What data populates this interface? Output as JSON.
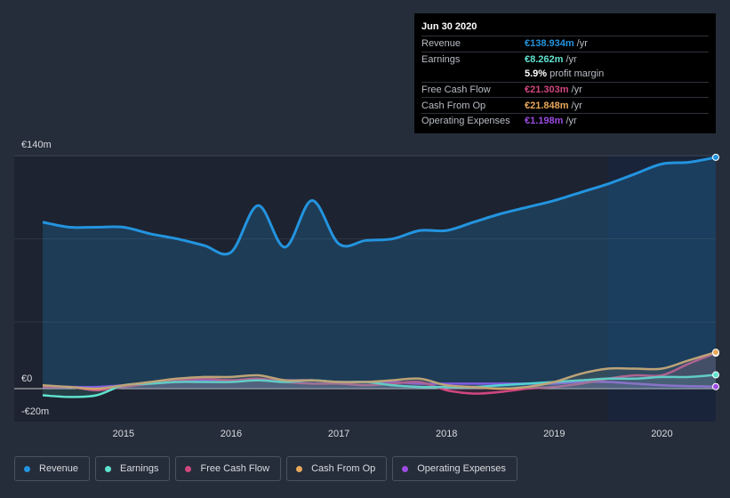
{
  "chart_data": {
    "type": "line",
    "title": "",
    "xlabel": "",
    "ylabel": "",
    "ylim": [
      -20,
      140
    ],
    "y_ticks": [
      {
        "value": 140,
        "label": "€140m"
      },
      {
        "value": 0,
        "label": "€0"
      },
      {
        "value": -20,
        "label": "-€20m"
      }
    ],
    "x_ticks": [
      {
        "value": 2015,
        "label": "2015"
      },
      {
        "value": 2016,
        "label": "2016"
      },
      {
        "value": 2017,
        "label": "2017"
      },
      {
        "value": 2018,
        "label": "2018"
      },
      {
        "value": 2019,
        "label": "2019"
      },
      {
        "value": 2020,
        "label": "2020"
      }
    ],
    "xlim": [
      2014.25,
      2020.5
    ],
    "forecast_start": 2019.5,
    "series": [
      {
        "name": "Revenue",
        "color": "#2394df",
        "fill": true,
        "x": [
          2014.25,
          2014.5,
          2014.75,
          2015.0,
          2015.25,
          2015.5,
          2015.75,
          2016.0,
          2016.25,
          2016.5,
          2016.75,
          2017.0,
          2017.25,
          2017.5,
          2017.75,
          2018.0,
          2018.25,
          2018.5,
          2018.75,
          2019.0,
          2019.25,
          2019.5,
          2019.75,
          2020.0,
          2020.25,
          2020.5
        ],
        "y": [
          100,
          97,
          97,
          97,
          93,
          90,
          86,
          82,
          110,
          85,
          113,
          87,
          89,
          90,
          95,
          95,
          100,
          105,
          109,
          113,
          118,
          123,
          129,
          135,
          136,
          139
        ]
      },
      {
        "name": "Earnings",
        "color": "#5fe3cf",
        "fill": false,
        "x": [
          2014.25,
          2014.5,
          2014.75,
          2015.0,
          2015.25,
          2015.5,
          2015.75,
          2016.0,
          2016.25,
          2016.5,
          2016.75,
          2017.0,
          2017.25,
          2017.5,
          2017.75,
          2018.0,
          2018.25,
          2018.5,
          2018.75,
          2019.0,
          2019.25,
          2019.5,
          2019.75,
          2020.0,
          2020.25,
          2020.5
        ],
        "y": [
          -4,
          -5,
          -4,
          2,
          3,
          4,
          4,
          4,
          5,
          4,
          5,
          4,
          4,
          2,
          1,
          1,
          1,
          2,
          3,
          4,
          5,
          6,
          6,
          7,
          7,
          8.262
        ]
      },
      {
        "name": "Free Cash Flow",
        "color": "#d1477f",
        "fill": false,
        "x": [
          2014.25,
          2014.5,
          2014.75,
          2015.0,
          2015.25,
          2015.5,
          2015.75,
          2016.0,
          2016.25,
          2016.5,
          2016.75,
          2017.0,
          2017.25,
          2017.5,
          2017.75,
          2018.0,
          2018.25,
          2018.5,
          2018.75,
          2019.0,
          2019.25,
          2019.5,
          2019.75,
          2020.0,
          2020.25,
          2020.5
        ],
        "y": [
          1,
          1,
          -1,
          1,
          3,
          5,
          6,
          5,
          6,
          4,
          3,
          3,
          2,
          3,
          4,
          -1,
          -3,
          -2,
          0,
          1,
          3,
          6,
          8,
          8,
          15,
          21.303
        ]
      },
      {
        "name": "Cash From Op",
        "color": "#e8a85a",
        "fill": false,
        "x": [
          2014.25,
          2014.5,
          2014.75,
          2015.0,
          2015.25,
          2015.5,
          2015.75,
          2016.0,
          2016.25,
          2016.5,
          2016.75,
          2017.0,
          2017.25,
          2017.5,
          2017.75,
          2018.0,
          2018.25,
          2018.5,
          2018.75,
          2019.0,
          2019.25,
          2019.5,
          2019.75,
          2020.0,
          2020.25,
          2020.5
        ],
        "y": [
          2,
          1,
          0,
          2,
          4,
          6,
          7,
          7,
          8,
          5,
          5,
          4,
          4,
          5,
          6,
          2,
          1,
          0,
          1,
          4,
          9,
          12,
          12,
          12,
          17,
          21.848
        ]
      },
      {
        "name": "Operating Expenses",
        "color": "#9c4ce3",
        "fill": false,
        "x": [
          2014.25,
          2014.5,
          2014.75,
          2015.0,
          2015.25,
          2015.5,
          2015.75,
          2016.0,
          2016.25,
          2016.5,
          2016.75,
          2017.0,
          2017.25,
          2017.5,
          2017.75,
          2018.0,
          2018.25,
          2018.5,
          2018.75,
          2019.0,
          2019.25,
          2019.5,
          2019.75,
          2020.0,
          2020.25,
          2020.5
        ],
        "y": [
          1,
          1,
          1,
          2,
          3,
          4,
          5,
          5,
          5,
          5,
          5,
          4,
          4,
          4,
          3,
          3,
          3,
          3,
          3,
          3,
          4,
          4,
          3,
          2,
          1.5,
          1.198
        ]
      }
    ]
  },
  "tooltip": {
    "date": "Jun 30 2020",
    "rows": [
      {
        "label": "Revenue",
        "value": "€138.934m",
        "unit": "/yr",
        "color": "#2394df"
      },
      {
        "label": "Earnings",
        "value": "€8.262m",
        "unit": "/yr",
        "color": "#5fe3cf"
      },
      {
        "label": "",
        "value": "5.9%",
        "unit": "profit margin",
        "color": "#ffffff"
      },
      {
        "label": "Free Cash Flow",
        "value": "€21.303m",
        "unit": "/yr",
        "color": "#d1477f"
      },
      {
        "label": "Cash From Op",
        "value": "€21.848m",
        "unit": "/yr",
        "color": "#e8a85a"
      },
      {
        "label": "Operating Expenses",
        "value": "€1.198m",
        "unit": "/yr",
        "color": "#9c4ce3"
      }
    ]
  },
  "legend": [
    {
      "label": "Revenue",
      "color": "#2394df"
    },
    {
      "label": "Earnings",
      "color": "#5fe3cf"
    },
    {
      "label": "Free Cash Flow",
      "color": "#d1477f"
    },
    {
      "label": "Cash From Op",
      "color": "#e8a85a"
    },
    {
      "label": "Operating Expenses",
      "color": "#9c4ce3"
    }
  ]
}
